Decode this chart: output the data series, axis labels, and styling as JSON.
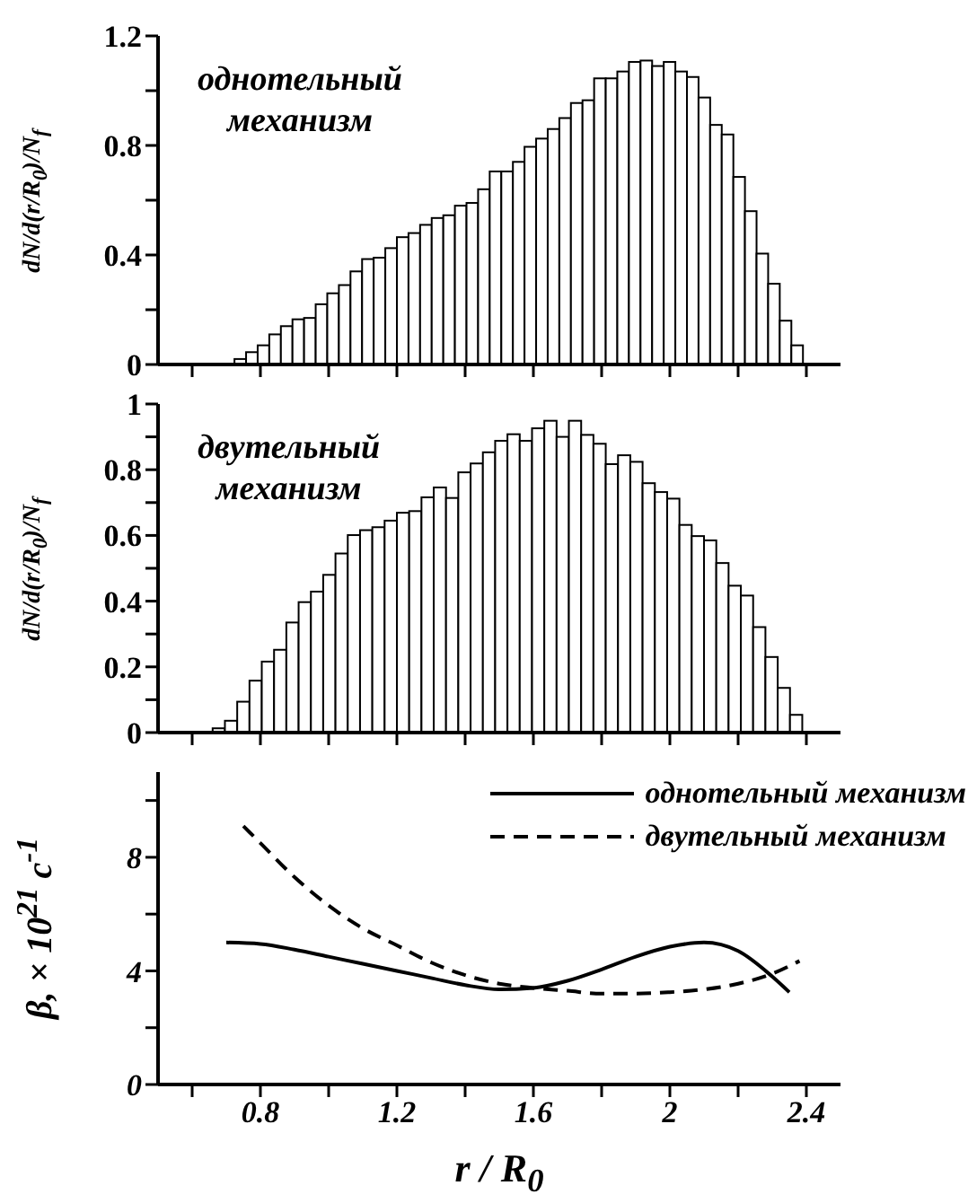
{
  "chart_data": [
    {
      "type": "histogram",
      "ylabel": "dN/d(r/R$_{0}$)/N$_{f}$",
      "annotations": [
        "однотельный\nмеханизм"
      ],
      "color": "#ffffff",
      "bins": [
        0.69,
        0.724,
        0.758,
        0.792,
        0.826,
        0.86,
        0.894,
        0.928,
        0.962,
        0.996,
        1.03,
        1.064,
        1.098,
        1.132,
        1.166,
        1.2,
        1.234,
        1.268,
        1.302,
        1.336,
        1.37,
        1.404,
        1.438,
        1.472,
        1.506,
        1.54,
        1.574,
        1.608,
        1.642,
        1.676,
        1.71,
        1.744,
        1.778,
        1.812,
        1.846,
        1.88,
        1.914,
        1.948,
        1.982,
        2.016,
        2.05,
        2.084,
        2.118,
        2.152,
        2.186,
        2.22,
        2.254,
        2.288,
        2.322,
        2.356,
        2.39,
        2.424
      ],
      "values": [
        null,
        0.02,
        0.045,
        0.07,
        0.11,
        0.14,
        0.165,
        0.17,
        0.22,
        0.26,
        0.29,
        0.34,
        0.385,
        0.39,
        0.425,
        0.465,
        0.48,
        0.51,
        0.535,
        0.545,
        0.58,
        0.59,
        0.64,
        0.705,
        0.705,
        0.74,
        0.795,
        0.825,
        0.86,
        0.9,
        0.955,
        0.965,
        1.045,
        1.045,
        1.07,
        1.105,
        1.11,
        1.09,
        1.105,
        1.07,
        1.05,
        0.975,
        0.875,
        0.84,
        0.685,
        0.56,
        0.405,
        0.295,
        0.16,
        0.07,
        null
      ],
      "xlim": [
        0.5,
        2.5
      ],
      "xticks": [
        {
          "value": 0.6,
          "label": null
        },
        {
          "value": 0.8,
          "label": null
        },
        {
          "value": 1.0,
          "label": null
        },
        {
          "value": 1.2,
          "label": null
        },
        {
          "value": 1.4,
          "label": null
        },
        {
          "value": 1.6,
          "label": null
        },
        {
          "value": 1.8,
          "label": null
        },
        {
          "value": 2.0,
          "label": null
        },
        {
          "value": 2.2,
          "label": null
        },
        {
          "value": 2.4,
          "label": null
        }
      ],
      "ylim": [
        0,
        1.2
      ],
      "yticks": [
        0,
        {
          "value": 0.2,
          "label": null
        },
        0.4,
        {
          "value": 0.6,
          "label": null
        },
        0.8,
        {
          "value": 1.0,
          "label": null
        },
        1.2
      ],
      "tick_labels": "y"
    },
    {
      "type": "histogram",
      "ylabel": "dN/d(r/R$_{0}$)/N$_{f}$",
      "annotations": [
        "двутельный\nмеханизм"
      ],
      "color": "#ffffff",
      "bins": [
        0.66,
        0.696,
        0.732,
        0.768,
        0.804,
        0.84,
        0.876,
        0.912,
        0.948,
        0.984,
        1.02,
        1.056,
        1.092,
        1.128,
        1.164,
        1.2,
        1.236,
        1.272,
        1.308,
        1.344,
        1.38,
        1.416,
        1.452,
        1.488,
        1.524,
        1.56,
        1.596,
        1.632,
        1.668,
        1.704,
        1.74,
        1.776,
        1.812,
        1.848,
        1.884,
        1.92,
        1.956,
        1.992,
        2.028,
        2.064,
        2.1,
        2.136,
        2.172,
        2.208,
        2.244,
        2.28,
        2.316,
        2.352,
        2.388
      ],
      "values": [
        0.013,
        0.036,
        0.094,
        0.158,
        0.216,
        0.252,
        0.335,
        0.397,
        0.429,
        0.48,
        0.545,
        0.601,
        0.616,
        0.625,
        0.645,
        0.669,
        0.674,
        0.716,
        0.746,
        0.714,
        0.792,
        0.819,
        0.853,
        0.888,
        0.908,
        0.888,
        0.926,
        0.949,
        0.9,
        0.949,
        0.906,
        0.879,
        0.817,
        0.844,
        0.824,
        0.759,
        0.732,
        0.712,
        0.632,
        0.598,
        0.585,
        0.516,
        0.447,
        0.417,
        0.321,
        0.23,
        0.136,
        0.054
      ],
      "xlim": [
        0.5,
        2.5
      ],
      "xticks": [
        {
          "value": 0.6,
          "label": null
        },
        {
          "value": 0.8,
          "label": null
        },
        {
          "value": 1.0,
          "label": null
        },
        {
          "value": 1.2,
          "label": null
        },
        {
          "value": 1.4,
          "label": null
        },
        {
          "value": 1.6,
          "label": null
        },
        {
          "value": 1.8,
          "label": null
        },
        {
          "value": 2.0,
          "label": null
        },
        {
          "value": 2.2,
          "label": null
        },
        {
          "value": 2.4,
          "label": null
        }
      ],
      "ylim": [
        0,
        1
      ],
      "yticks": [
        0,
        {
          "value": 0.1,
          "label": null
        },
        0.2,
        {
          "value": 0.3,
          "label": null
        },
        0.4,
        {
          "value": 0.5,
          "label": null
        },
        0.6,
        {
          "value": 0.7,
          "label": null
        },
        0.8,
        {
          "value": 0.9,
          "label": null
        },
        1
      ],
      "tick_labels": "y"
    },
    {
      "type": "line",
      "xlabel": "r / R$_{0}$",
      "ylabel": "β, × 10$^{21}$ с$^{-1}$",
      "legend": "top right",
      "series": [
        {
          "name": "однотельный механизм",
          "color": "#000000",
          "line_style": "solid",
          "x": [
            0.7,
            0.8,
            0.9,
            1.0,
            1.1,
            1.2,
            1.3,
            1.4,
            1.5,
            1.6,
            1.7,
            1.8,
            1.9,
            2.0,
            2.1,
            2.2,
            2.3,
            2.35
          ],
          "values": [
            5.0,
            4.95,
            4.75,
            4.5,
            4.25,
            4.0,
            3.75,
            3.5,
            3.35,
            3.4,
            3.65,
            4.05,
            4.5,
            4.85,
            5.0,
            4.7,
            3.8,
            3.25
          ]
        },
        {
          "name": "двутельный механизм",
          "color": "#000000",
          "line_style": "dashed",
          "x": [
            0.75,
            0.8,
            0.9,
            1.0,
            1.1,
            1.2,
            1.3,
            1.4,
            1.5,
            1.6,
            1.7,
            1.8,
            1.9,
            2.0,
            2.1,
            2.2,
            2.3,
            2.38
          ],
          "values": [
            9.1,
            8.5,
            7.3,
            6.3,
            5.5,
            4.9,
            4.3,
            3.85,
            3.55,
            3.4,
            3.3,
            3.2,
            3.2,
            3.25,
            3.35,
            3.55,
            3.9,
            4.35
          ]
        }
      ],
      "xlim": [
        0.5,
        2.5
      ],
      "xticks": [
        {
          "value": 0.6,
          "label": null
        },
        0.8,
        {
          "value": 1.0,
          "label": null
        },
        1.2,
        {
          "value": 1.4,
          "label": null
        },
        1.6,
        {
          "value": 1.8,
          "label": null
        },
        2,
        {
          "value": 2.2,
          "label": null
        },
        2.4
      ],
      "ylim": [
        0,
        11
      ],
      "yticks": [
        0,
        {
          "value": 2,
          "label": null
        },
        4,
        {
          "value": 6,
          "label": null
        },
        8,
        {
          "value": 10,
          "label": null
        }
      ]
    }
  ]
}
